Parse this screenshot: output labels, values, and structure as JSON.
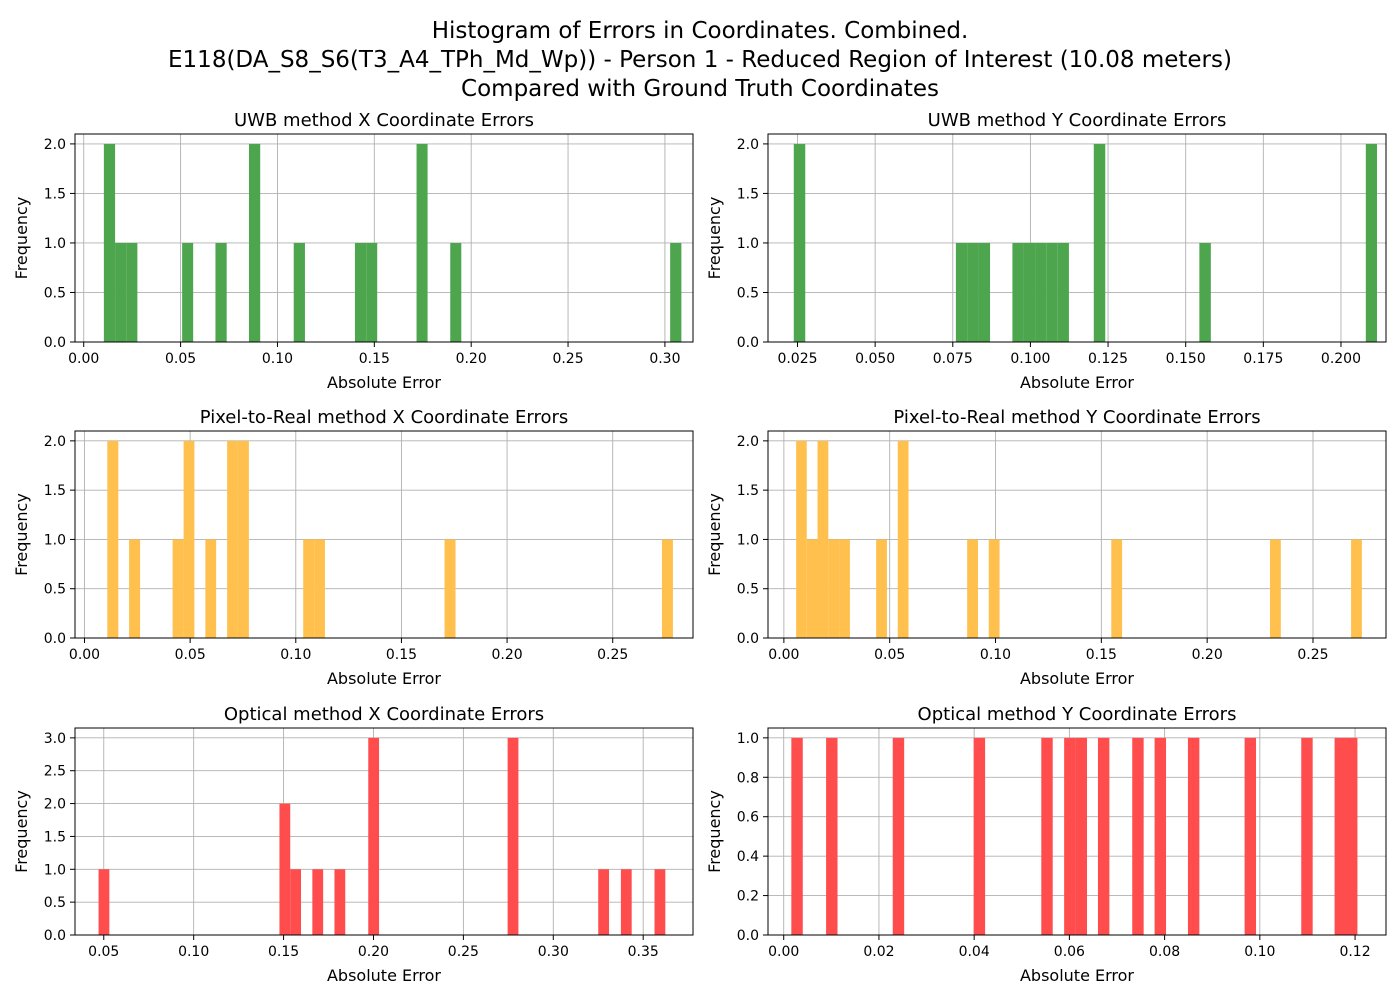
{
  "figure_title": [
    "Histogram of Errors in Coordinates. Combined.",
    "E118(DA_S8_S6(T3_A4_TPh_Md_Wp)) - Person 1 - Reduced Region of Interest (10.08 meters)",
    "Compared with Ground Truth Coordinates"
  ],
  "colors": {
    "uwb": "#4da64d",
    "pixel": "#ffc04d",
    "optical": "#ff4d4d"
  },
  "chart_data": [
    {
      "type": "bar",
      "title": "UWB method X Coordinate Errors",
      "xlabel": "Absolute Error",
      "ylabel": "Frequency",
      "color": "#4da64d",
      "xlim": [
        -0.0045,
        0.3145
      ],
      "ylim": [
        0,
        2.1
      ],
      "xticks": [
        0.0,
        0.05,
        0.1,
        0.15,
        0.2,
        0.25,
        0.3
      ],
      "xtick_labels": [
        "0.00",
        "0.05",
        "0.10",
        "0.15",
        "0.20",
        "0.25",
        "0.30"
      ],
      "yticks": [
        0,
        0.5,
        1,
        1.5,
        2
      ],
      "ytick_labels": [
        "0.0",
        "0.5",
        "1.0",
        "1.5",
        "2.0"
      ],
      "bins": [
        [
          0.0104,
          0.0162,
          2
        ],
        [
          0.0162,
          0.0219,
          1
        ],
        [
          0.0219,
          0.0277,
          1
        ],
        [
          0.0508,
          0.0565,
          1
        ],
        [
          0.068,
          0.0738,
          1
        ],
        [
          0.0853,
          0.0911,
          2
        ],
        [
          0.1084,
          0.1142,
          1
        ],
        [
          0.14,
          0.1458,
          1
        ],
        [
          0.1458,
          0.1515,
          1
        ],
        [
          0.1718,
          0.1775,
          2
        ],
        [
          0.1892,
          0.1949,
          1
        ],
        [
          0.3027,
          0.3085,
          1
        ]
      ]
    },
    {
      "type": "bar",
      "title": "UWB method Y Coordinate Errors",
      "xlabel": "Absolute Error",
      "ylabel": "Frequency",
      "color": "#4da64d",
      "xlim": [
        0.0155,
        0.2145
      ],
      "ylim": [
        0,
        2.1
      ],
      "xticks": [
        0.025,
        0.05,
        0.075,
        0.1,
        0.125,
        0.15,
        0.175,
        0.2
      ],
      "xtick_labels": [
        "0.025",
        "0.050",
        "0.075",
        "0.100",
        "0.125",
        "0.150",
        "0.175",
        "0.200"
      ],
      "yticks": [
        0,
        0.5,
        1,
        1.5,
        2
      ],
      "ytick_labels": [
        "0.0",
        "0.5",
        "1.0",
        "1.5",
        "2.0"
      ],
      "bins": [
        [
          0.0238,
          0.0275,
          2
        ],
        [
          0.076,
          0.0797,
          1
        ],
        [
          0.0797,
          0.0833,
          1
        ],
        [
          0.0833,
          0.087,
          1
        ],
        [
          0.0942,
          0.0978,
          1
        ],
        [
          0.0978,
          0.1015,
          1
        ],
        [
          0.1015,
          0.1051,
          1
        ],
        [
          0.1051,
          0.1088,
          1
        ],
        [
          0.1088,
          0.1124,
          1
        ],
        [
          0.1204,
          0.1241,
          2
        ],
        [
          0.1544,
          0.1581,
          1
        ],
        [
          0.208,
          0.2116,
          2
        ]
      ]
    },
    {
      "type": "bar",
      "title": "Pixel-to-Real method X Coordinate Errors",
      "xlabel": "Absolute Error",
      "ylabel": "Frequency",
      "color": "#ffc04d",
      "xlim": [
        -0.0045,
        0.288
      ],
      "ylim": [
        0,
        2.1
      ],
      "xticks": [
        0.0,
        0.05,
        0.1,
        0.15,
        0.2,
        0.25
      ],
      "xtick_labels": [
        "0.00",
        "0.05",
        "0.10",
        "0.15",
        "0.20",
        "0.25"
      ],
      "yticks": [
        0,
        0.5,
        1,
        1.5,
        2
      ],
      "ytick_labels": [
        "0.0",
        "0.5",
        "1.0",
        "1.5",
        "2.0"
      ],
      "bins": [
        [
          0.0108,
          0.016,
          2
        ],
        [
          0.0211,
          0.0263,
          1
        ],
        [
          0.0417,
          0.0469,
          1
        ],
        [
          0.0469,
          0.052,
          2
        ],
        [
          0.0572,
          0.0623,
          1
        ],
        [
          0.0675,
          0.0726,
          2
        ],
        [
          0.0726,
          0.0778,
          2
        ],
        [
          0.1035,
          0.1087,
          1
        ],
        [
          0.1087,
          0.1138,
          1
        ],
        [
          0.1704,
          0.1756,
          1
        ],
        [
          0.2733,
          0.2785,
          1
        ]
      ]
    },
    {
      "type": "bar",
      "title": "Pixel-to-Real method Y Coordinate Errors",
      "xlabel": "Absolute Error",
      "ylabel": "Frequency",
      "color": "#ffc04d",
      "xlim": [
        -0.0075,
        0.2845
      ],
      "ylim": [
        0,
        2.1
      ],
      "xticks": [
        0.0,
        0.05,
        0.1,
        0.15,
        0.2,
        0.25
      ],
      "xtick_labels": [
        "0.00",
        "0.05",
        "0.10",
        "0.15",
        "0.20",
        "0.25"
      ],
      "yticks": [
        0,
        0.5,
        1,
        1.5,
        2
      ],
      "ytick_labels": [
        "0.0",
        "0.5",
        "1.0",
        "1.5",
        "2.0"
      ],
      "bins": [
        [
          0.0058,
          0.0108,
          2
        ],
        [
          0.0108,
          0.0159,
          1
        ],
        [
          0.0159,
          0.021,
          2
        ],
        [
          0.021,
          0.0261,
          1
        ],
        [
          0.0261,
          0.0312,
          1
        ],
        [
          0.0436,
          0.0487,
          1
        ],
        [
          0.0538,
          0.0589,
          2
        ],
        [
          0.0866,
          0.0917,
          1
        ],
        [
          0.0968,
          0.1019,
          1
        ],
        [
          0.1547,
          0.1598,
          1
        ],
        [
          0.2297,
          0.2348,
          1
        ],
        [
          0.268,
          0.2731,
          1
        ]
      ]
    },
    {
      "type": "bar",
      "title": "Optical method X Coordinate Errors",
      "xlabel": "Absolute Error",
      "ylabel": "Frequency",
      "color": "#ff4d4d",
      "xlim": [
        0.034,
        0.3777
      ],
      "ylim": [
        0,
        3.15
      ],
      "xticks": [
        0.05,
        0.1,
        0.15,
        0.2,
        0.25,
        0.3,
        0.35
      ],
      "xtick_labels": [
        "0.05",
        "0.10",
        "0.15",
        "0.20",
        "0.25",
        "0.30",
        "0.35"
      ],
      "yticks": [
        0,
        0.5,
        1,
        1.5,
        2,
        2.5,
        3
      ],
      "ytick_labels": [
        "0.0",
        "0.5",
        "1.0",
        "1.5",
        "2.0",
        "2.5",
        "3.0"
      ],
      "bins": [
        [
          0.0471,
          0.0531,
          1
        ],
        [
          0.1477,
          0.1537,
          2
        ],
        [
          0.1537,
          0.1597,
          1
        ],
        [
          0.166,
          0.172,
          1
        ],
        [
          0.1783,
          0.1843,
          1
        ],
        [
          0.1971,
          0.2031,
          3
        ],
        [
          0.2746,
          0.2806,
          3
        ],
        [
          0.325,
          0.331,
          1
        ],
        [
          0.3376,
          0.3436,
          1
        ],
        [
          0.3563,
          0.3623,
          1
        ]
      ]
    },
    {
      "type": "bar",
      "title": "Optical method Y Coordinate Errors",
      "xlabel": "Absolute Error",
      "ylabel": "Frequency",
      "color": "#ff4d4d",
      "xlim": [
        -0.0033,
        0.1265
      ],
      "ylim": [
        0,
        1.05
      ],
      "xticks": [
        0.0,
        0.02,
        0.04,
        0.06,
        0.08,
        0.1,
        0.12
      ],
      "xtick_labels": [
        "0.00",
        "0.02",
        "0.04",
        "0.06",
        "0.08",
        "0.10",
        "0.12"
      ],
      "yticks": [
        0,
        0.2,
        0.4,
        0.6,
        0.8,
        1.0
      ],
      "ytick_labels": [
        "0.0",
        "0.2",
        "0.4",
        "0.6",
        "0.8",
        "1.0"
      ],
      "bins": [
        [
          0.0016,
          0.004,
          1
        ],
        [
          0.0089,
          0.0113,
          1
        ],
        [
          0.0229,
          0.0253,
          1
        ],
        [
          0.0399,
          0.0423,
          1
        ],
        [
          0.0541,
          0.0565,
          1
        ],
        [
          0.0589,
          0.0613,
          1
        ],
        [
          0.0613,
          0.0637,
          1
        ],
        [
          0.066,
          0.0684,
          1
        ],
        [
          0.0732,
          0.0756,
          1
        ],
        [
          0.0779,
          0.0803,
          1
        ],
        [
          0.0849,
          0.0873,
          1
        ],
        [
          0.0968,
          0.0992,
          1
        ],
        [
          0.1087,
          0.1111,
          1
        ],
        [
          0.1157,
          0.1181,
          1
        ],
        [
          0.1181,
          0.1205,
          1
        ]
      ]
    }
  ]
}
